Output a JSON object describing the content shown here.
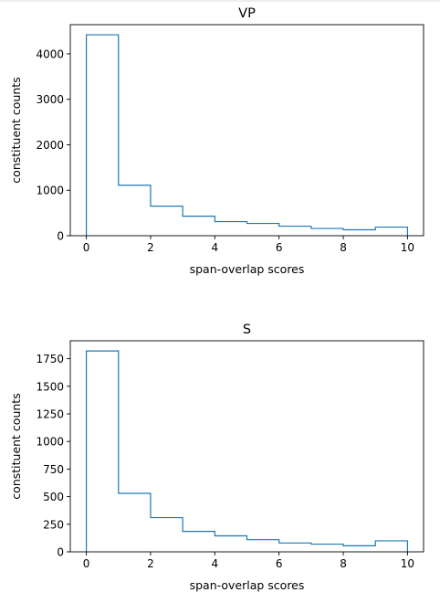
{
  "colors": {
    "line": "#1f77b4",
    "axis": "#000000",
    "background": "#ffffff"
  },
  "chart_data": [
    {
      "type": "histogram",
      "title": "VP",
      "xlabel": "span-overlap scores",
      "ylabel": "constituent counts",
      "bin_edges": [
        0,
        1,
        2,
        3,
        4,
        5,
        6,
        7,
        8,
        9,
        10
      ],
      "values": [
        4420,
        1110,
        650,
        430,
        310,
        270,
        210,
        160,
        130,
        190
      ],
      "xlim": [
        -0.5,
        10.5
      ],
      "ylim": [
        0,
        4642
      ],
      "xticks": [
        0,
        2,
        4,
        6,
        8,
        10
      ],
      "yticks": [
        0,
        1000,
        2000,
        3000,
        4000
      ]
    },
    {
      "type": "histogram",
      "title": "S",
      "xlabel": "span-overlap scores",
      "ylabel": "constituent counts",
      "bin_edges": [
        0,
        1,
        2,
        3,
        4,
        5,
        6,
        7,
        8,
        9,
        10
      ],
      "values": [
        1820,
        530,
        310,
        185,
        145,
        110,
        80,
        70,
        55,
        100
      ],
      "xlim": [
        -0.5,
        10.5
      ],
      "ylim": [
        0,
        1912
      ],
      "xticks": [
        0,
        2,
        4,
        6,
        8,
        10
      ],
      "yticks": [
        0,
        250,
        500,
        750,
        1000,
        1250,
        1500,
        1750
      ]
    }
  ]
}
